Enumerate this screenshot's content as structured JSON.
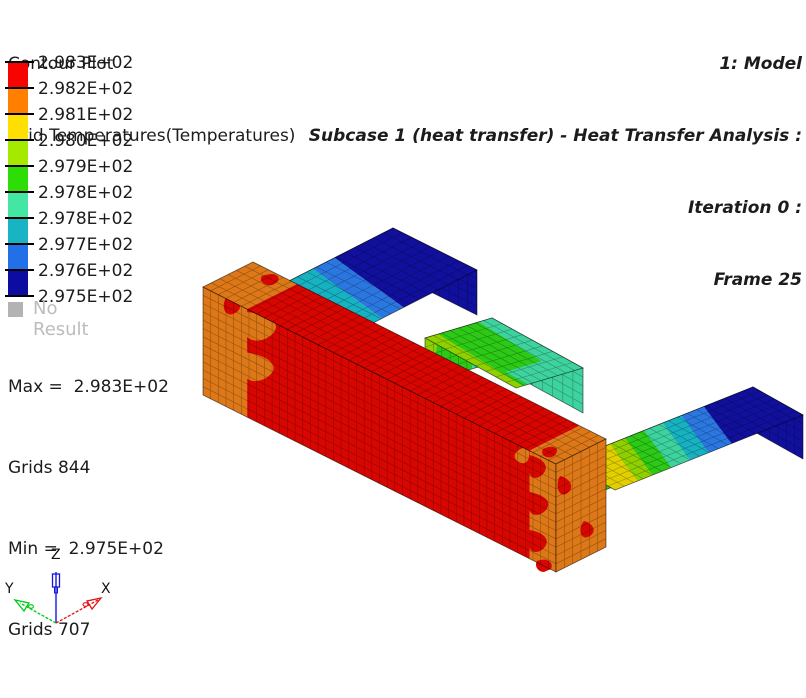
{
  "header": {
    "plot_type": "Contour Plot",
    "result": "Grid Temperatures(Temperatures)",
    "model_lines": [
      "1: Model",
      "Subcase 1 (heat transfer) - Heat Transfer Analysis :",
      "Iteration 0 :",
      "Frame 25"
    ]
  },
  "legend": {
    "values": [
      "2.983E+02",
      "2.982E+02",
      "2.981E+02",
      "2.980E+02",
      "2.979E+02",
      "2.978E+02",
      "2.978E+02",
      "2.977E+02",
      "2.976E+02",
      "2.975E+02"
    ],
    "band_colors": [
      "#f50400",
      "#ff8000",
      "#ffdf00",
      "#a6e900",
      "#2cdd06",
      "#44e6a4",
      "#18b4c4",
      "#2170e8",
      "#0c0ca0"
    ],
    "no_result_label": "No Result",
    "no_result_color": "#b3b3b3",
    "no_result_text_color": "#bcbcbc"
  },
  "stats": {
    "max_line": "Max =  2.983E+02",
    "max_grid_line": "Grids 844",
    "min_line": "Min =  2.975E+02",
    "min_grid_line": "Grids 707"
  },
  "triad": {
    "x": "X",
    "y": "Y",
    "z": "Z",
    "x_color": "#e01414",
    "y_color": "#00c814",
    "z_color": "#1616e0"
  },
  "scene": {
    "background": "#ffffff",
    "mesh_line_color": "rgba(0,0,0,0.32)",
    "outline_color": "rgba(0,0,0,0.45)",
    "palette": {
      "red": "#d80600",
      "orange": "#dd7818",
      "yellow": "#e2cf00",
      "chartreuse": "#8ed000",
      "green": "#2cc916",
      "springgreen": "#3ed29e",
      "teal": "#17b2c2",
      "blue": "#2b77e0",
      "navy": "#10109d"
    }
  }
}
